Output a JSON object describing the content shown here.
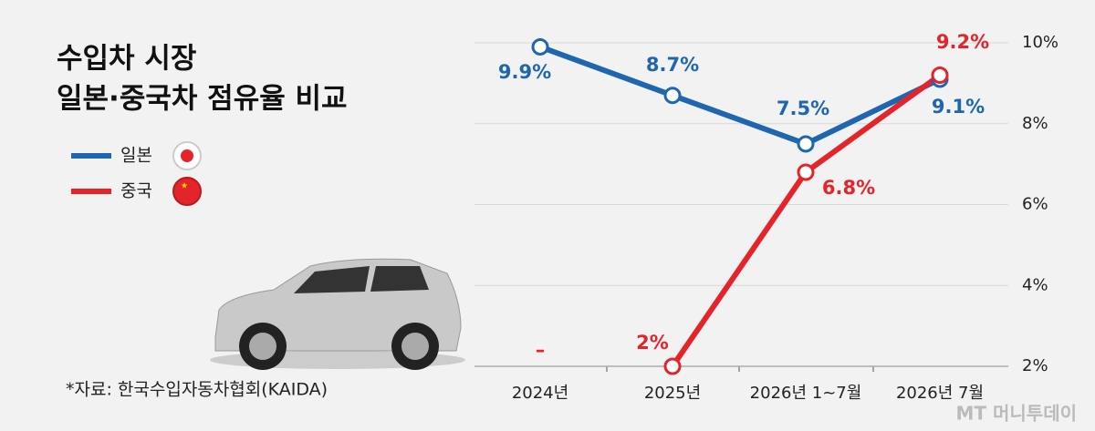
{
  "chart_data": {
    "type": "line",
    "title": [
      "수입차 시장",
      "일본·중국차 점유율 비교"
    ],
    "source": "*자료: 한국수입자동차협회(KAIDA)",
    "watermark": "MT 머니투데이",
    "categories": [
      "2024년",
      "2025년",
      "2026년 1~7월",
      "2026년 7월"
    ],
    "series": [
      {
        "name": "일본",
        "color": "#1f65b0",
        "values": [
          9.9,
          8.7,
          7.5,
          9.1
        ],
        "value_labels": [
          "9.9%",
          "8.7%",
          "7.5%",
          "9.1%"
        ]
      },
      {
        "name": "중국",
        "color": "#e4242b",
        "values": [
          null,
          2,
          6.8,
          9.2
        ],
        "value_labels": [
          "–",
          "2%",
          "6.8%",
          "9.2%"
        ]
      }
    ],
    "ylim": [
      2,
      10
    ],
    "yticks": [
      {
        "value": 2,
        "label": "2%"
      },
      {
        "value": 4,
        "label": "4%"
      },
      {
        "value": 6,
        "label": "6%"
      },
      {
        "value": 8,
        "label": "8%"
      },
      {
        "value": 10,
        "label": "10%"
      }
    ],
    "grid": true
  }
}
